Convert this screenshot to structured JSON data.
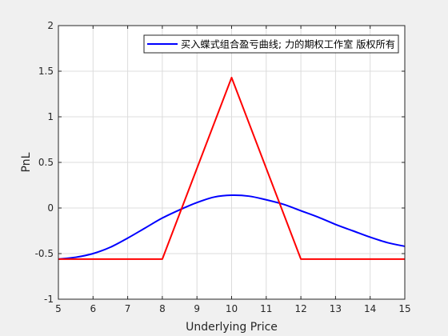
{
  "chart_data": {
    "type": "line",
    "xlabel": "Underlying Price",
    "ylabel": "PnL",
    "xlim": [
      5,
      15
    ],
    "ylim": [
      -1,
      2
    ],
    "x_ticks": [
      5,
      6,
      7,
      8,
      9,
      10,
      11,
      12,
      13,
      14,
      15
    ],
    "y_ticks": [
      -1,
      -0.5,
      0,
      0.5,
      1,
      1.5,
      2
    ],
    "grid": true,
    "legend_position": "top-right",
    "series": [
      {
        "name": "买入蝶式组合盈亏曲线; 力的期权工作室 版权所有",
        "color": "#0000ff",
        "x": [
          5,
          5.5,
          6,
          6.5,
          7,
          7.5,
          8,
          8.5,
          9,
          9.5,
          10,
          10.5,
          11,
          11.5,
          12,
          12.5,
          13,
          13.5,
          14,
          14.5,
          15
        ],
        "y": [
          -0.56,
          -0.54,
          -0.5,
          -0.43,
          -0.33,
          -0.22,
          -0.11,
          -0.02,
          0.06,
          0.12,
          0.14,
          0.13,
          0.09,
          0.04,
          -0.03,
          -0.1,
          -0.18,
          -0.25,
          -0.32,
          -0.38,
          -0.42
        ]
      },
      {
        "color": "#ff0000",
        "x": [
          5,
          8,
          10,
          12,
          15
        ],
        "y": [
          -0.56,
          -0.56,
          1.43,
          -0.56,
          -0.56
        ]
      }
    ]
  }
}
